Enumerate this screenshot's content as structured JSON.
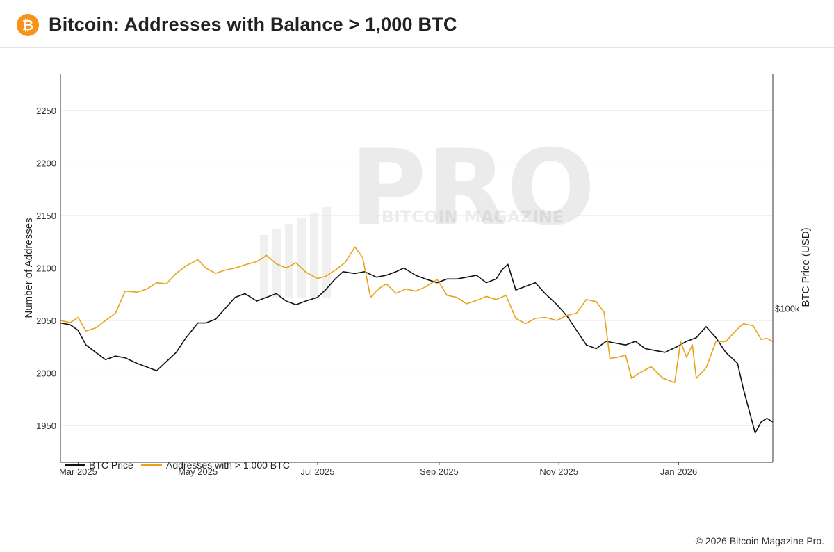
{
  "header": {
    "logo_glyph": "₿",
    "title": "Bitcoin: Addresses with Balance > 1,000 BTC"
  },
  "footer": {
    "copyright": "© 2026 Bitcoin Magazine Pro."
  },
  "watermark": {
    "top": "BITCOIN MAGAZINE",
    "main": "PRO"
  },
  "colors": {
    "btc_price": "#111111",
    "addresses": "#e8a317",
    "logo": "#f7931a",
    "grid": "#e6e6e6"
  },
  "chart_data": {
    "type": "line",
    "ylabel": "Number of Addresses",
    "y2label": "BTC Price (USD)",
    "ylim": [
      1915,
      2285
    ],
    "y2lim": [
      58000,
      164000
    ],
    "y_ticks": [
      1950,
      2000,
      2050,
      2100,
      2150,
      2200,
      2250
    ],
    "y2_ticks": [
      {
        "value": 100000,
        "label": "$100k"
      }
    ],
    "x_range": [
      "2025-02-20",
      "2026-02-18"
    ],
    "x_ticks": [
      {
        "date": "2025-03-01",
        "label": "Mar 2025"
      },
      {
        "date": "2025-05-01",
        "label": "May 2025"
      },
      {
        "date": "2025-07-01",
        "label": "Jul 2025"
      },
      {
        "date": "2025-09-01",
        "label": "Sep 2025"
      },
      {
        "date": "2025-11-01",
        "label": "Nov 2025"
      },
      {
        "date": "2026-01-01",
        "label": "Jan 2026"
      }
    ],
    "grid": "horizontal",
    "legend_position": "bottom-left",
    "series": [
      {
        "name": "BTC Price",
        "axis": "right",
        "points": [
          [
            "2025-02-20",
            96000
          ],
          [
            "2025-02-25",
            95500
          ],
          [
            "2025-03-01",
            94000
          ],
          [
            "2025-03-05",
            90000
          ],
          [
            "2025-03-10",
            88000
          ],
          [
            "2025-03-15",
            86000
          ],
          [
            "2025-03-20",
            87000
          ],
          [
            "2025-03-25",
            86500
          ],
          [
            "2025-03-31",
            85000
          ],
          [
            "2025-04-05",
            84000
          ],
          [
            "2025-04-10",
            83000
          ],
          [
            "2025-04-15",
            85500
          ],
          [
            "2025-04-20",
            88000
          ],
          [
            "2025-04-25",
            92000
          ],
          [
            "2025-05-01",
            96000
          ],
          [
            "2025-05-05",
            96000
          ],
          [
            "2025-05-10",
            97000
          ],
          [
            "2025-05-15",
            100000
          ],
          [
            "2025-05-20",
            103000
          ],
          [
            "2025-05-25",
            104000
          ],
          [
            "2025-05-31",
            102000
          ],
          [
            "2025-06-05",
            103000
          ],
          [
            "2025-06-10",
            104000
          ],
          [
            "2025-06-15",
            102000
          ],
          [
            "2025-06-20",
            101000
          ],
          [
            "2025-06-25",
            102000
          ],
          [
            "2025-07-01",
            103000
          ],
          [
            "2025-07-05",
            105000
          ],
          [
            "2025-07-10",
            108000
          ],
          [
            "2025-07-14",
            110000
          ],
          [
            "2025-07-20",
            109500
          ],
          [
            "2025-07-25",
            110000
          ],
          [
            "2025-07-31",
            108500
          ],
          [
            "2025-08-05",
            109000
          ],
          [
            "2025-08-10",
            110000
          ],
          [
            "2025-08-14",
            111000
          ],
          [
            "2025-08-20",
            109000
          ],
          [
            "2025-08-25",
            108000
          ],
          [
            "2025-08-31",
            107000
          ],
          [
            "2025-09-05",
            108000
          ],
          [
            "2025-09-10",
            108000
          ],
          [
            "2025-09-15",
            108500
          ],
          [
            "2025-09-20",
            109000
          ],
          [
            "2025-09-25",
            107000
          ],
          [
            "2025-09-30",
            108000
          ],
          [
            "2025-10-03",
            110500
          ],
          [
            "2025-10-06",
            112000
          ],
          [
            "2025-10-10",
            105000
          ],
          [
            "2025-10-15",
            106000
          ],
          [
            "2025-10-20",
            107000
          ],
          [
            "2025-10-25",
            104000
          ],
          [
            "2025-10-31",
            101000
          ],
          [
            "2025-11-05",
            98000
          ],
          [
            "2025-11-10",
            94000
          ],
          [
            "2025-11-15",
            90000
          ],
          [
            "2025-11-20",
            89000
          ],
          [
            "2025-11-25",
            91000
          ],
          [
            "2025-11-30",
            90500
          ],
          [
            "2025-12-05",
            90000
          ],
          [
            "2025-12-10",
            91000
          ],
          [
            "2025-12-15",
            89000
          ],
          [
            "2025-12-20",
            88500
          ],
          [
            "2025-12-25",
            88000
          ],
          [
            "2025-12-31",
            89500
          ],
          [
            "2026-01-05",
            91000
          ],
          [
            "2026-01-10",
            92000
          ],
          [
            "2026-01-15",
            95000
          ],
          [
            "2026-01-20",
            92000
          ],
          [
            "2026-01-25",
            88000
          ],
          [
            "2026-01-31",
            85000
          ],
          [
            "2026-02-03",
            78000
          ],
          [
            "2026-02-06",
            72000
          ],
          [
            "2026-02-09",
            66000
          ],
          [
            "2026-02-12",
            69000
          ],
          [
            "2026-02-15",
            70000
          ],
          [
            "2026-02-18",
            69000
          ]
        ]
      },
      {
        "name": "Addresses with > 1,000 BTC",
        "axis": "left",
        "points": [
          [
            "2025-02-20",
            2050
          ],
          [
            "2025-02-25",
            2048
          ],
          [
            "2025-03-01",
            2053
          ],
          [
            "2025-03-05",
            2040
          ],
          [
            "2025-03-10",
            2043
          ],
          [
            "2025-03-15",
            2050
          ],
          [
            "2025-03-20",
            2057
          ],
          [
            "2025-03-25",
            2078
          ],
          [
            "2025-03-31",
            2077
          ],
          [
            "2025-04-05",
            2080
          ],
          [
            "2025-04-10",
            2086
          ],
          [
            "2025-04-15",
            2085
          ],
          [
            "2025-04-20",
            2095
          ],
          [
            "2025-04-25",
            2102
          ],
          [
            "2025-05-01",
            2108
          ],
          [
            "2025-05-05",
            2100
          ],
          [
            "2025-05-10",
            2095
          ],
          [
            "2025-05-15",
            2098
          ],
          [
            "2025-05-20",
            2100
          ],
          [
            "2025-05-25",
            2103
          ],
          [
            "2025-05-31",
            2106
          ],
          [
            "2025-06-05",
            2112
          ],
          [
            "2025-06-10",
            2104
          ],
          [
            "2025-06-15",
            2100
          ],
          [
            "2025-06-20",
            2105
          ],
          [
            "2025-06-25",
            2096
          ],
          [
            "2025-07-01",
            2090
          ],
          [
            "2025-07-05",
            2092
          ],
          [
            "2025-07-10",
            2098
          ],
          [
            "2025-07-15",
            2105
          ],
          [
            "2025-07-20",
            2120
          ],
          [
            "2025-07-24",
            2110
          ],
          [
            "2025-07-28",
            2072
          ],
          [
            "2025-08-01",
            2080
          ],
          [
            "2025-08-05",
            2085
          ],
          [
            "2025-08-10",
            2076
          ],
          [
            "2025-08-15",
            2080
          ],
          [
            "2025-08-20",
            2078
          ],
          [
            "2025-08-25",
            2082
          ],
          [
            "2025-08-31",
            2089
          ],
          [
            "2025-09-05",
            2074
          ],
          [
            "2025-09-10",
            2072
          ],
          [
            "2025-09-15",
            2066
          ],
          [
            "2025-09-20",
            2069
          ],
          [
            "2025-09-25",
            2073
          ],
          [
            "2025-09-30",
            2070
          ],
          [
            "2025-10-05",
            2074
          ],
          [
            "2025-10-10",
            2052
          ],
          [
            "2025-10-15",
            2047
          ],
          [
            "2025-10-20",
            2052
          ],
          [
            "2025-10-25",
            2053
          ],
          [
            "2025-10-31",
            2050
          ],
          [
            "2025-11-05",
            2055
          ],
          [
            "2025-11-10",
            2057
          ],
          [
            "2025-11-15",
            2070
          ],
          [
            "2025-11-20",
            2068
          ],
          [
            "2025-11-24",
            2058
          ],
          [
            "2025-11-27",
            2014
          ],
          [
            "2025-12-01",
            2015
          ],
          [
            "2025-12-05",
            2017
          ],
          [
            "2025-12-08",
            1995
          ],
          [
            "2025-12-12",
            2000
          ],
          [
            "2025-12-18",
            2006
          ],
          [
            "2025-12-24",
            1995
          ],
          [
            "2025-12-30",
            1991
          ],
          [
            "2026-01-02",
            2030
          ],
          [
            "2026-01-05",
            2015
          ],
          [
            "2026-01-08",
            2027
          ],
          [
            "2026-01-10",
            1995
          ],
          [
            "2026-01-15",
            2005
          ],
          [
            "2026-01-20",
            2030
          ],
          [
            "2026-01-25",
            2030
          ],
          [
            "2026-01-31",
            2042
          ],
          [
            "2026-02-03",
            2047
          ],
          [
            "2026-02-08",
            2045
          ],
          [
            "2026-02-12",
            2032
          ],
          [
            "2026-02-15",
            2033
          ],
          [
            "2026-02-18",
            2030
          ]
        ]
      }
    ]
  }
}
